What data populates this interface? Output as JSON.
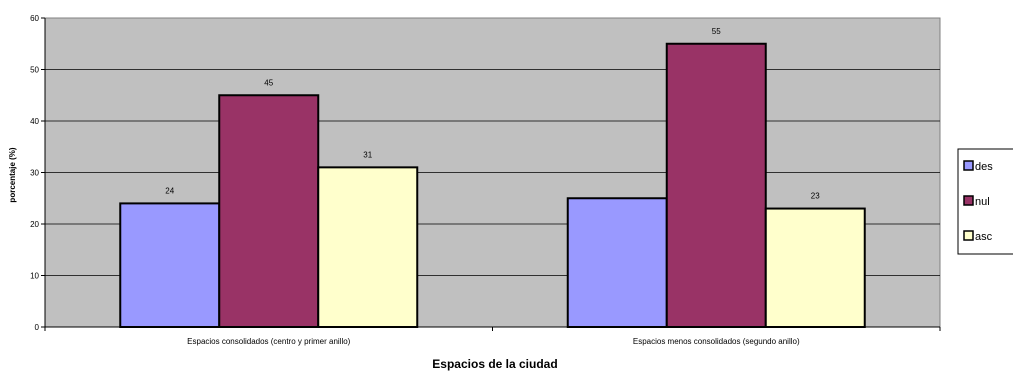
{
  "chart_data": {
    "type": "bar",
    "categories": [
      "Espacios consolidados (centro y primer anillo)",
      "Espacios menos consolidados (segundo anillo)"
    ],
    "series": [
      {
        "name": "des",
        "values": [
          24,
          25
        ],
        "labels": [
          "24",
          ""
        ],
        "color": "#9999FF"
      },
      {
        "name": "nul",
        "values": [
          45,
          55
        ],
        "labels": [
          "45",
          "55"
        ],
        "color": "#993366"
      },
      {
        "name": "asc",
        "values": [
          31,
          23
        ],
        "labels": [
          "31",
          "23"
        ],
        "color": "#FFFFCC"
      }
    ],
    "title": "",
    "xlabel": "Espacios de la ciudad",
    "ylabel": "porcentaje (%)",
    "ylim": [
      0,
      60
    ],
    "yticks": [
      "0",
      "10",
      "20",
      "30",
      "40",
      "50",
      "60"
    ],
    "grid": true,
    "legend_position": "right",
    "plot_background": "#C0C0C0"
  }
}
